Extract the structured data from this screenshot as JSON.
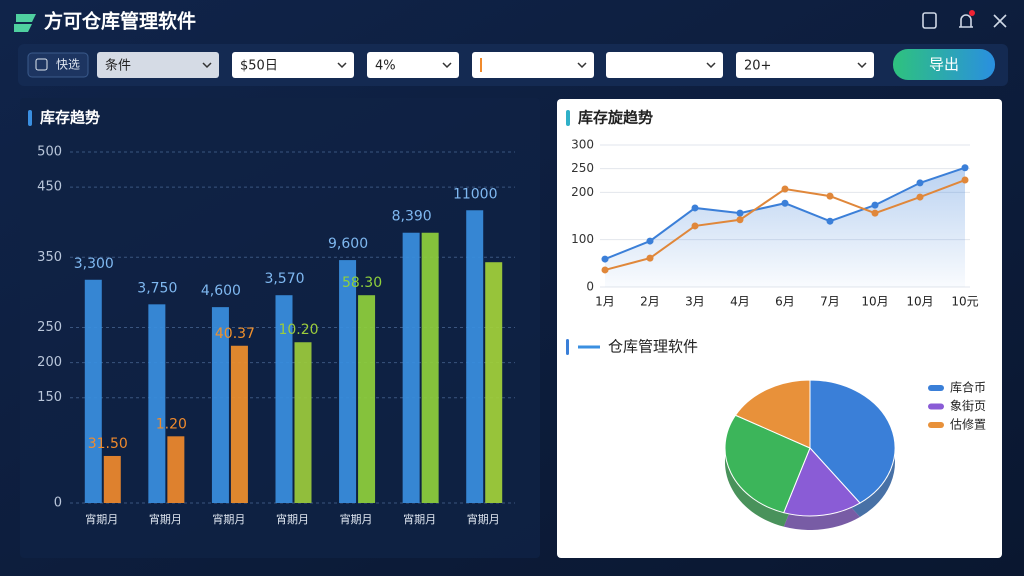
{
  "header": {
    "title": "方可仓库管理软件"
  },
  "toolbar": {
    "quick": "快选",
    "filters": [
      "条件",
      "$50日",
      "4%",
      "20+"
    ],
    "export": "导出"
  },
  "chart_data": [
    {
      "type": "bar",
      "title": "库存趋势",
      "categories": [
        "宵期月",
        "宵期月",
        "宵期月",
        "宵期月",
        "宵期月",
        "宵期月",
        "宵期月"
      ],
      "ylim": [
        0,
        500
      ],
      "yticks": [
        0,
        150,
        200,
        250,
        350,
        450,
        500
      ],
      "grid": true,
      "series": [
        {
          "color": "#3a8fe0",
          "values": [
            318,
            283,
            279,
            296,
            346,
            385,
            417
          ],
          "annotations": [
            "3,300",
            "3,750",
            "4,600",
            "3,570",
            "9,600",
            "8,390",
            "11000"
          ]
        },
        {
          "colors": [
            "#f08a2c",
            "#f08a2c",
            "#f0902c",
            "#9ccc3c",
            "#8fd03c",
            "#8fd03c",
            "#a3d23a"
          ],
          "values": [
            67,
            95,
            224,
            229,
            296,
            385,
            343
          ],
          "annotations": [
            "31.50",
            "1.20",
            "40.37",
            "10.20",
            "58.30",
            null,
            null
          ]
        }
      ]
    },
    {
      "type": "line",
      "title": "库存旋趋势",
      "categories": [
        "1月",
        "2月",
        "3月",
        "4月",
        "6月",
        "7月",
        "10月",
        "10月",
        "10元"
      ],
      "ylim": [
        0,
        300
      ],
      "yticks": [
        0,
        100,
        200,
        250,
        300
      ],
      "grid": true,
      "series": [
        {
          "color": "#3b7fd8",
          "values": [
            59,
            97,
            167,
            156,
            177,
            139,
            173,
            220,
            252
          ]
        },
        {
          "color": "#e0873a",
          "values": [
            36,
            61,
            129,
            142,
            207,
            192,
            156,
            190,
            226
          ]
        }
      ]
    },
    {
      "type": "pie",
      "title": "仓库管理软件",
      "categories": [
        "库合币",
        "象街页",
        null,
        "估修置"
      ],
      "values": [
        40,
        15,
        28,
        17
      ],
      "colors": [
        "#3a7fd8",
        "#8a5cd6",
        "#3cb55a",
        "#e8913a"
      ]
    }
  ]
}
